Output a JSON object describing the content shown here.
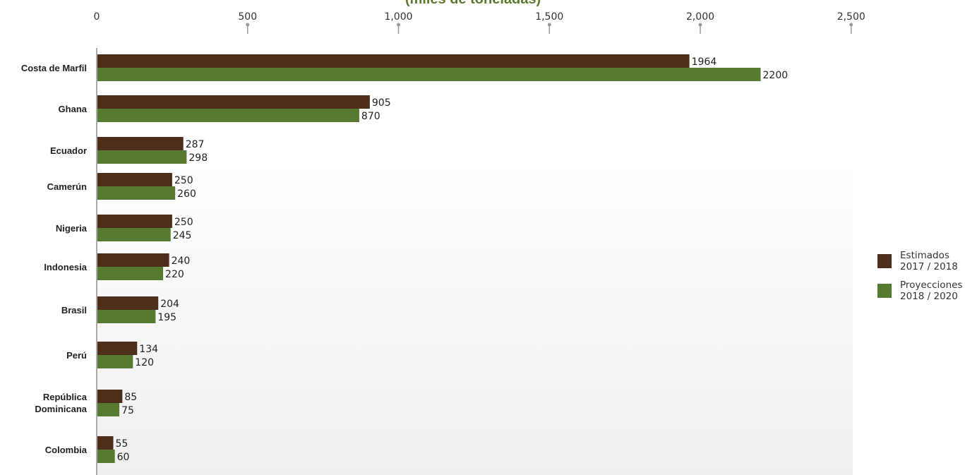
{
  "chart_data": {
    "type": "bar",
    "orientation": "horizontal",
    "title": "(miles de toneladas)",
    "categories": [
      "Costa de Marfil",
      "Ghana",
      "Ecuador",
      "Camerún",
      "Nigeria",
      "Indonesia",
      "Brasil",
      "Perú",
      "República\nDominicana",
      "Colombia"
    ],
    "series": [
      {
        "name": "Estimados\n2017 / 2018",
        "color": "#4e2e1a",
        "values": [
          1964,
          905,
          287,
          250,
          250,
          240,
          204,
          134,
          85,
          55
        ]
      },
      {
        "name": "Proyecciones\n2018 / 2020",
        "color": "#567a2f",
        "values": [
          2200,
          870,
          298,
          260,
          245,
          220,
          195,
          120,
          75,
          60
        ]
      }
    ],
    "xticks": [
      0,
      500,
      1000,
      1500,
      2000,
      2500
    ],
    "xtick_labels": [
      "0",
      "500",
      "1,000",
      "1,500",
      "2,000",
      "2,500"
    ],
    "xlim": [
      0,
      2500
    ],
    "legend_position": "right",
    "grid": false
  }
}
